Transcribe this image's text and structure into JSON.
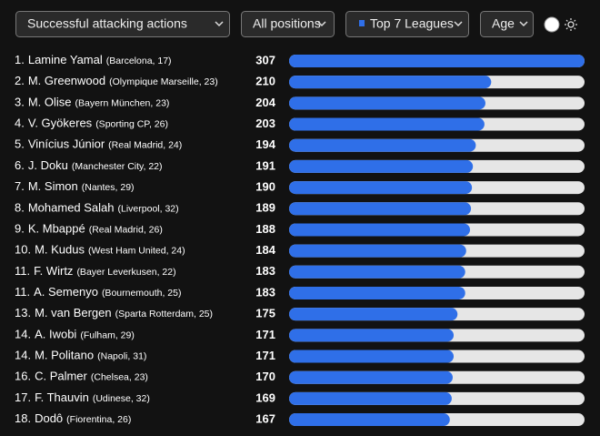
{
  "controls": {
    "metric": "Successful attacking actions",
    "position": "All positions",
    "league": "Top 7 Leagues",
    "age": "Age"
  },
  "chart_data": {
    "type": "bar",
    "color": "#2f6fe8",
    "track_color": "#e6e6e6",
    "ranks": [
      "1.",
      "2.",
      "3.",
      "4.",
      "5.",
      "6.",
      "7.",
      "8.",
      "9.",
      "10.",
      "11.",
      "11.",
      "13.",
      "14.",
      "14.",
      "16.",
      "17.",
      "18."
    ],
    "categories": [
      "Lamine Yamal",
      "M. Greenwood",
      "M. Olise",
      "V. Gyökeres",
      "Vinícius Júnior",
      "J. Doku",
      "M. Simon",
      "Mohamed Salah",
      "K. Mbappé",
      "M. Kudus",
      "F. Wirtz",
      "A. Semenyo",
      "M. van Bergen",
      "A. Iwobi",
      "M. Politano",
      "C. Palmer",
      "F. Thauvin",
      "Dodô"
    ],
    "details": [
      "(Barcelona, 17)",
      "(Olympique Marseille, 23)",
      "(Bayern München, 23)",
      "(Sporting CP, 26)",
      "(Real Madrid, 24)",
      "(Manchester City, 22)",
      "(Nantes, 29)",
      "(Liverpool, 32)",
      "(Real Madrid, 26)",
      "(West Ham United, 24)",
      "(Bayer Leverkusen, 22)",
      "(Bournemouth, 25)",
      "(Sparta Rotterdam, 25)",
      "(Fulham, 29)",
      "(Napoli, 31)",
      "(Chelsea, 23)",
      "(Udinese, 32)",
      "(Fiorentina, 26)"
    ],
    "values": [
      307,
      210,
      204,
      203,
      194,
      191,
      190,
      189,
      188,
      184,
      183,
      183,
      175,
      171,
      171,
      170,
      169,
      167
    ]
  }
}
